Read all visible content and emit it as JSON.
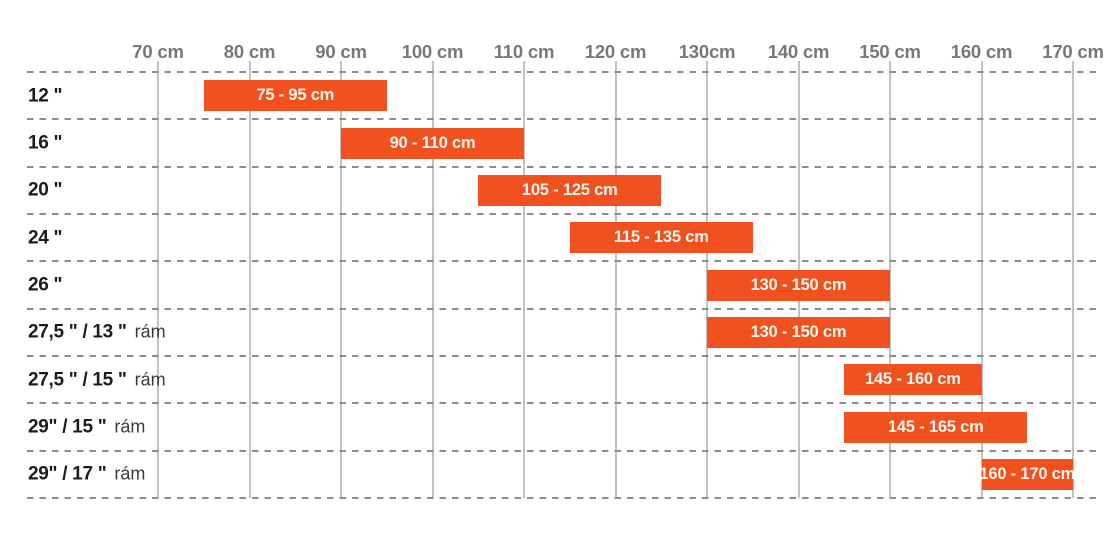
{
  "chart_data": {
    "type": "bar",
    "variant": "horizontal-range",
    "title": "",
    "xlabel": "",
    "ylabel": "",
    "unit": "cm",
    "xlim": [
      70,
      170
    ],
    "grid": {
      "vertical": "solid",
      "horizontal": "dashed",
      "legend_position": "none"
    },
    "x_ticks": [
      {
        "value": 70,
        "label": "70 cm"
      },
      {
        "value": 80,
        "label": "80 cm"
      },
      {
        "value": 90,
        "label": "90 cm"
      },
      {
        "value": 100,
        "label": "100 cm"
      },
      {
        "value": 110,
        "label": "110 cm"
      },
      {
        "value": 120,
        "label": "120 cm"
      },
      {
        "value": 130,
        "label": "130cm"
      },
      {
        "value": 140,
        "label": "140 cm"
      },
      {
        "value": 150,
        "label": "150 cm"
      },
      {
        "value": 160,
        "label": "160 cm"
      },
      {
        "value": 170,
        "label": "170 cm"
      }
    ],
    "rows": [
      {
        "wheel_size": "12 \"",
        "frame_note": "",
        "range_min": 75,
        "range_max": 95,
        "bar_label": "75 - 95 cm"
      },
      {
        "wheel_size": "16 \"",
        "frame_note": "",
        "range_min": 90,
        "range_max": 110,
        "bar_label": "90 - 110 cm"
      },
      {
        "wheel_size": "20 \"",
        "frame_note": "",
        "range_min": 105,
        "range_max": 125,
        "bar_label": "105 - 125 cm"
      },
      {
        "wheel_size": "24 \"",
        "frame_note": "",
        "range_min": 115,
        "range_max": 135,
        "bar_label": "115 - 135 cm"
      },
      {
        "wheel_size": "26 \"",
        "frame_note": "",
        "range_min": 130,
        "range_max": 150,
        "bar_label": "130 - 150 cm"
      },
      {
        "wheel_size": "27,5 \" / 13 \"",
        "frame_note": "rám",
        "range_min": 130,
        "range_max": 150,
        "bar_label": "130 - 150 cm"
      },
      {
        "wheel_size": "27,5 \" / 15 \"",
        "frame_note": "rám",
        "range_min": 145,
        "range_max": 160,
        "bar_label": "145 - 160 cm"
      },
      {
        "wheel_size": "29\" / 15 \"",
        "frame_note": "rám",
        "range_min": 145,
        "range_max": 165,
        "bar_label": "145 - 165 cm"
      },
      {
        "wheel_size": "29\" / 17 \"",
        "frame_note": "rám",
        "range_min": 160,
        "range_max": 170,
        "bar_label": "160 - 170 cm"
      }
    ],
    "colors": {
      "background": "#FFFFFF",
      "bar": "#F0511E",
      "bar_text": "#FCF6EF",
      "tick_text": "#77787B",
      "row_label_text": "#1C1C1A",
      "frame_note_text": "#3B3B39",
      "grid_vertical": "#C2C2C4",
      "grid_dashed": "#8C8C8E"
    }
  }
}
